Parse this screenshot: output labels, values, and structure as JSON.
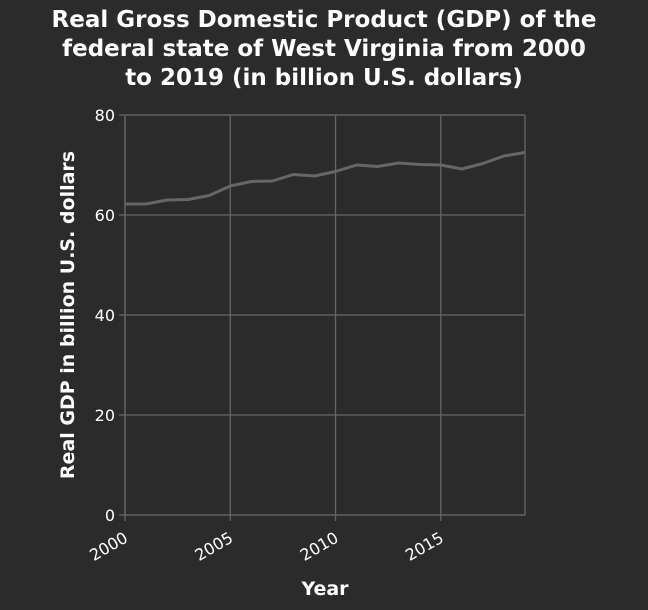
{
  "chart_data": {
    "type": "line",
    "title_lines": [
      "Real Gross Domestic Product (GDP) of the",
      "federal state of West Virginia from 2000",
      "to 2019 (in billion U.S. dollars)"
    ],
    "xlabel": "Year",
    "ylabel": "Real GDP in billion U.S. dollars",
    "xlim": [
      2000,
      2019
    ],
    "ylim": [
      0,
      80
    ],
    "xticks": [
      2000,
      2005,
      2010,
      2015
    ],
    "yticks": [
      0,
      20,
      40,
      60,
      80
    ],
    "grid": true,
    "x": [
      2000,
      2001,
      2002,
      2003,
      2004,
      2005,
      2006,
      2007,
      2008,
      2009,
      2010,
      2011,
      2012,
      2013,
      2014,
      2015,
      2016,
      2017,
      2018,
      2019
    ],
    "series": [
      {
        "values": [
          62.2,
          62.2,
          63.0,
          63.1,
          63.9,
          65.8,
          66.7,
          66.8,
          68.1,
          67.8,
          68.7,
          70.0,
          69.7,
          70.4,
          70.1,
          70.0,
          69.2,
          70.3,
          71.8,
          72.5
        ]
      }
    ],
    "colors": {
      "background": "#2b2b2b",
      "line": "#666666",
      "grid": "#666666",
      "text": "#ffffff"
    }
  }
}
